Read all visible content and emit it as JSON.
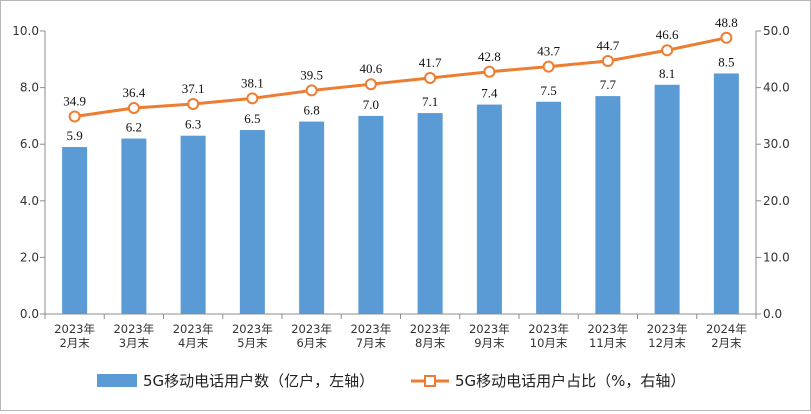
{
  "chart_data": {
    "type": "bar",
    "categories": [
      [
        "2023年",
        "2月末"
      ],
      [
        "2023年",
        "3月末"
      ],
      [
        "2023年",
        "4月末"
      ],
      [
        "2023年",
        "5月末"
      ],
      [
        "2023年",
        "6月末"
      ],
      [
        "2023年",
        "7月末"
      ],
      [
        "2023年",
        "8月末"
      ],
      [
        "2023年",
        "9月末"
      ],
      [
        "2023年",
        "10月末"
      ],
      [
        "2023年",
        "11月末"
      ],
      [
        "2023年",
        "12月末"
      ],
      [
        "2024年",
        "2月末"
      ]
    ],
    "series": [
      {
        "name": "5G移动电话用户数（亿户，左轴）",
        "type": "bar",
        "axis": "left",
        "color": "#5B9BD5",
        "values": [
          5.9,
          6.2,
          6.3,
          6.5,
          6.8,
          7.0,
          7.1,
          7.4,
          7.5,
          7.7,
          8.1,
          8.5
        ],
        "labels": [
          "5.9",
          "6.2",
          "6.3",
          "6.5",
          "6.8",
          "7.0",
          "7.1",
          "7.4",
          "7.5",
          "7.7",
          "8.1",
          "8.5"
        ]
      },
      {
        "name": "5G移动电话用户占比（%，右轴）",
        "type": "line",
        "axis": "right",
        "color": "#ED7D31",
        "values": [
          34.9,
          36.4,
          37.1,
          38.1,
          39.5,
          40.6,
          41.7,
          42.8,
          43.7,
          44.7,
          46.6,
          48.8
        ],
        "labels": [
          "34.9",
          "36.4",
          "37.1",
          "38.1",
          "39.5",
          "40.6",
          "41.7",
          "42.8",
          "43.7",
          "44.7",
          "46.6",
          "48.8"
        ]
      }
    ],
    "y_left": {
      "min": 0,
      "max": 10,
      "ticks": [
        "0.0",
        "2.0",
        "4.0",
        "6.0",
        "8.0",
        "10.0"
      ]
    },
    "y_right": {
      "min": 0,
      "max": 50,
      "ticks": [
        "0.0",
        "10.0",
        "20.0",
        "30.0",
        "40.0",
        "50.0"
      ]
    },
    "legend_position": "bottom",
    "grid": false,
    "title": "",
    "xlabel": "",
    "ylabel": ""
  }
}
